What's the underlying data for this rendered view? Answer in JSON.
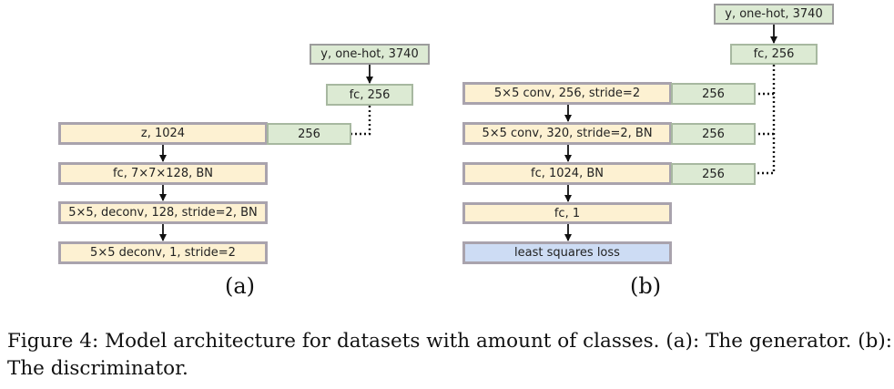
{
  "generator": {
    "label_y": "y, one-hot, 3740",
    "label_fc": "fc, 256",
    "label_z": "z, 1024",
    "label_256": "256",
    "label_fc2": "fc, 7×7×128, BN",
    "label_deconv1": "5×5, deconv, 128, stride=2, BN",
    "label_deconv2": "5×5 deconv, 1, stride=2",
    "sublabel": "(a)"
  },
  "discriminator": {
    "label_y": "y, one-hot, 3740",
    "label_fc": "fc, 256",
    "label_conv1": "5×5 conv, 256, stride=2",
    "label_conv2": "5×5 conv, 320, stride=2, BN",
    "label_fc1024": "fc, 1024, BN",
    "label_fc1": "fc, 1",
    "label_loss": "least squares loss",
    "label_256a": "256",
    "label_256b": "256",
    "label_256c": "256",
    "sublabel": "(b)"
  },
  "caption": "Figure 4:  Model architecture for datasets with amount of classes.  (a):  The generator. (b): The discriminator.",
  "colors": {
    "label_box": "#dcead3",
    "layer_box": "#fdf1d2",
    "loss_box": "#cddcf4",
    "border": "#a9a3ad"
  }
}
